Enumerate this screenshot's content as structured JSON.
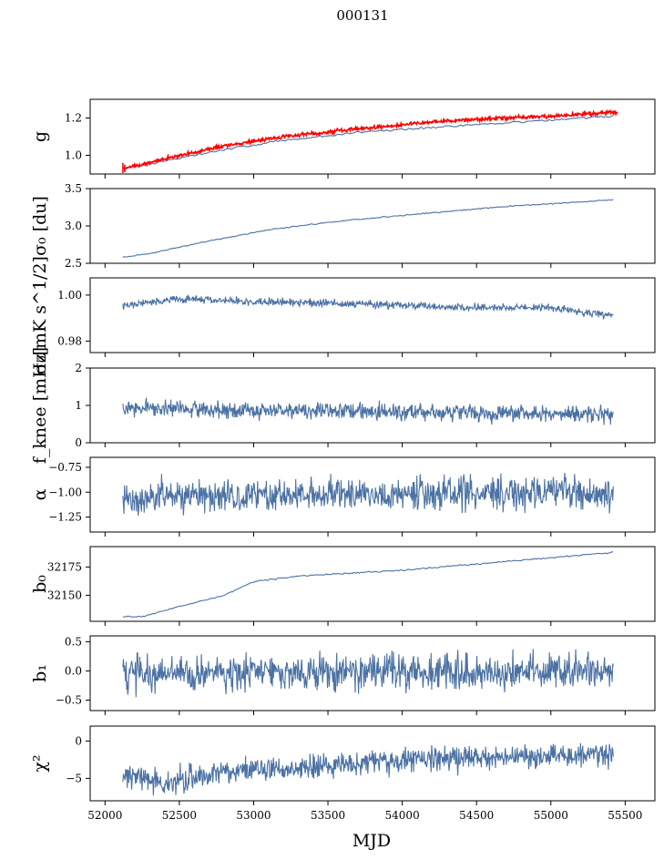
{
  "figure": {
    "title": "000131",
    "xlabel": "MJD"
  },
  "colors": {
    "series": "#4c72a4",
    "highlight": "#ff0000"
  },
  "chart_data": {
    "type": "line",
    "x_ticks": [
      52000,
      52500,
      53000,
      53500,
      54000,
      54500,
      55000,
      55500
    ],
    "x_tick_labels": [
      "52000",
      "52500",
      "53000",
      "53500",
      "54000",
      "54500",
      "55000",
      "55500"
    ],
    "xlim": [
      51900,
      55700
    ],
    "x_range": [
      52120,
      55420
    ],
    "panels": [
      {
        "id": "g",
        "ylabel": "g",
        "ylim": [
          0.9,
          1.3
        ],
        "yticks": [
          1.0,
          1.2
        ],
        "ytick_labels": [
          "1.0",
          "1.2"
        ],
        "trend": [
          [
            52120,
            0.93
          ],
          [
            52400,
            0.97
          ],
          [
            52800,
            1.03
          ],
          [
            53200,
            1.08
          ],
          [
            53800,
            1.13
          ],
          [
            54400,
            1.16
          ],
          [
            55000,
            1.19
          ],
          [
            55420,
            1.21
          ]
        ],
        "noise": 0.003,
        "n": 200,
        "overlay": {
          "trend": [
            [
              52120,
              0.93
            ],
            [
              52400,
              0.98
            ],
            [
              52800,
              1.05
            ],
            [
              53200,
              1.1
            ],
            [
              53800,
              1.15
            ],
            [
              54400,
              1.19
            ],
            [
              55000,
              1.21
            ],
            [
              55420,
              1.23
            ]
          ],
          "x_end": 55450,
          "noise": 0.005,
          "n": 800
        }
      },
      {
        "id": "sigma0-du",
        "ylabel": "σ₀ [du]",
        "ylim": [
          2.5,
          3.5
        ],
        "yticks": [
          2.5,
          3.0,
          3.5
        ],
        "ytick_labels": [
          "2.5",
          "3.0",
          "3.5"
        ],
        "trend": [
          [
            52120,
            2.58
          ],
          [
            52300,
            2.63
          ],
          [
            52700,
            2.8
          ],
          [
            53100,
            2.95
          ],
          [
            53600,
            3.07
          ],
          [
            54100,
            3.16
          ],
          [
            54700,
            3.26
          ],
          [
            55420,
            3.35
          ]
        ],
        "noise": 0.004,
        "n": 300
      },
      {
        "id": "sigma0-mk",
        "ylabel": "σ₀[mK s^1/2]",
        "ylim": [
          0.975,
          1.0075
        ],
        "yticks": [
          0.98,
          1.0
        ],
        "ytick_labels": [
          "0.98",
          "1.00"
        ],
        "trend": [
          [
            52120,
            0.9955
          ],
          [
            52500,
            0.9985
          ],
          [
            53000,
            0.997
          ],
          [
            53500,
            0.9965
          ],
          [
            54000,
            0.9955
          ],
          [
            54500,
            0.9945
          ],
          [
            55000,
            0.9945
          ],
          [
            55420,
            0.991
          ]
        ],
        "noise": 0.0008,
        "n": 900
      },
      {
        "id": "fknee",
        "ylabel": "f_knee [mHz]",
        "ylim": [
          0,
          2
        ],
        "yticks": [
          0,
          1,
          2
        ],
        "ytick_labels": [
          "0",
          "1",
          "2"
        ],
        "trend": [
          [
            52120,
            0.95
          ],
          [
            52600,
            0.88
          ],
          [
            53500,
            0.84
          ],
          [
            54500,
            0.8
          ],
          [
            55420,
            0.75
          ]
        ],
        "noise": 0.11,
        "n": 900
      },
      {
        "id": "alpha",
        "ylabel": "α",
        "ylim": [
          -1.4,
          -0.65
        ],
        "yticks": [
          -1.25,
          -1.0,
          -0.75
        ],
        "ytick_labels": [
          "−1.25",
          "−1.00",
          "−0.75"
        ],
        "trend": [
          [
            52120,
            -1.05
          ],
          [
            55420,
            -1.0
          ]
        ],
        "noise": 0.08,
        "n": 900
      },
      {
        "id": "b0",
        "ylabel": "b₀",
        "ylim": [
          32127,
          32193
        ],
        "yticks": [
          32150,
          32175
        ],
        "ytick_labels": [
          "32150",
          "32175"
        ],
        "trend": [
          [
            52120,
            32131
          ],
          [
            52250,
            32131
          ],
          [
            52500,
            32140
          ],
          [
            52800,
            32150
          ],
          [
            53000,
            32162
          ],
          [
            53300,
            32167
          ],
          [
            54000,
            32172
          ],
          [
            54800,
            32181
          ],
          [
            55420,
            32188
          ]
        ],
        "noise": 0.3,
        "n": 300
      },
      {
        "id": "b1",
        "ylabel": "b₁",
        "ylim": [
          -0.68,
          0.6
        ],
        "yticks": [
          -0.5,
          0.0,
          0.5
        ],
        "ytick_labels": [
          "−0.5",
          "0.0",
          "0.5"
        ],
        "trend": [
          [
            52120,
            -0.05
          ],
          [
            55420,
            0.0
          ]
        ],
        "noise": 0.15,
        "n": 900
      },
      {
        "id": "chi2",
        "ylabel": "χ²",
        "ylim": [
          -8,
          2
        ],
        "yticks": [
          -5,
          0
        ],
        "ytick_labels": [
          "−5",
          "0"
        ],
        "trend": [
          [
            52120,
            -4.5
          ],
          [
            52400,
            -5.5
          ],
          [
            52800,
            -4.0
          ],
          [
            53400,
            -3.5
          ],
          [
            54000,
            -2.5
          ],
          [
            55000,
            -2.0
          ],
          [
            55420,
            -1.8
          ]
        ],
        "noise": 0.8,
        "n": 900
      }
    ]
  }
}
